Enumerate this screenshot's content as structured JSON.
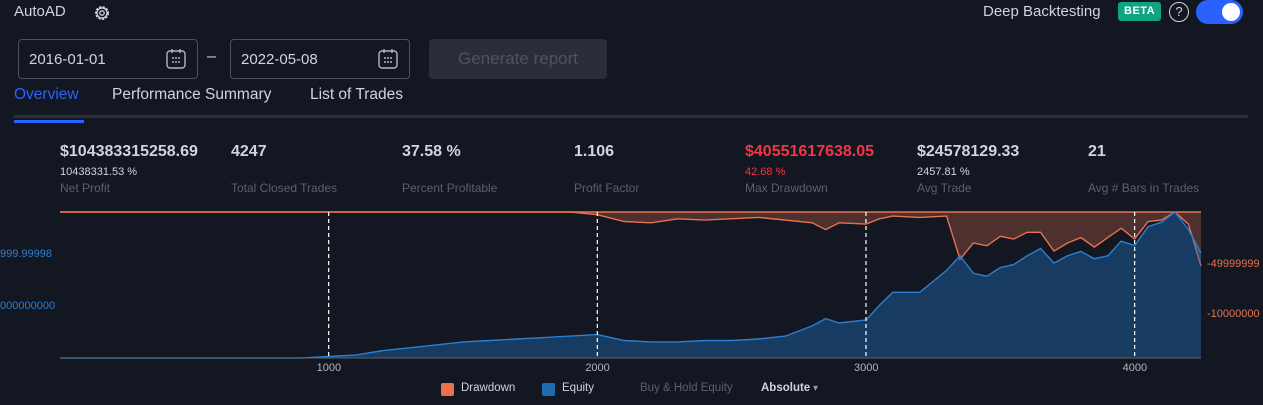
{
  "header": {
    "app_title": "AutoAD",
    "deep_backtesting_label": "Deep Backtesting",
    "beta_badge": "BETA",
    "help_glyph": "?",
    "deep_backtesting_enabled": true
  },
  "date_range": {
    "start": "2016-01-01",
    "separator": "–",
    "end": "2022-05-08",
    "generate_label": "Generate report"
  },
  "tabs": [
    {
      "label": "Overview",
      "active": true
    },
    {
      "label": "Performance Summary",
      "active": false
    },
    {
      "label": "List of Trades",
      "active": false
    }
  ],
  "stats": {
    "net_profit": {
      "value": "$104383315258.69",
      "sub": "10438331.53 %",
      "label": "Net Profit"
    },
    "total_closed_trades": {
      "value": "4247",
      "label": "Total Closed Trades"
    },
    "percent_profitable": {
      "value": "37.58 %",
      "label": "Percent Profitable"
    },
    "profit_factor": {
      "value": "1.106",
      "label": "Profit Factor"
    },
    "max_drawdown": {
      "value": "$40551617638.05",
      "sub": "42.68 %",
      "label": "Max Drawdown"
    },
    "avg_trade": {
      "value": "$24578129.33",
      "sub": "2457.81 %",
      "label": "Avg Trade"
    },
    "avg_bars": {
      "value": "21",
      "label": "Avg # Bars in Trades"
    }
  },
  "chart_axes": {
    "left_ticks": [
      "999.99998",
      "000000000"
    ],
    "right_ticks": [
      "-49999999",
      "-10000000"
    ],
    "x_ticks": [
      "1000",
      "2000",
      "3000",
      "4000"
    ]
  },
  "legend": {
    "drawdown": "Drawdown",
    "equity": "Equity",
    "buy_hold": "Buy & Hold Equity",
    "mode": "Absolute",
    "mode_caret": "▾"
  },
  "colors": {
    "accent": "#2962ff",
    "drawdown": "#e8724f",
    "equity": "#1f6bb0",
    "negative": "#f23645",
    "beta": "#0fa37f"
  },
  "chart_data": {
    "type": "area",
    "xlim": [
      0,
      4247
    ],
    "x_ticks": [
      1000,
      2000,
      3000,
      4000
    ],
    "series": [
      {
        "name": "Equity",
        "x": [
          0,
          900,
          1000,
          1100,
          1200,
          1300,
          1400,
          1500,
          1600,
          1700,
          1800,
          1900,
          2000,
          2100,
          2200,
          2300,
          2400,
          2500,
          2600,
          2700,
          2800,
          2850,
          2900,
          3000,
          3050,
          3100,
          3200,
          3300,
          3350,
          3400,
          3450,
          3500,
          3550,
          3600,
          3650,
          3700,
          3750,
          3800,
          3850,
          3900,
          3950,
          4000,
          4050,
          4100,
          4150,
          4200,
          4247
        ],
        "values": [
          0,
          0,
          0.01,
          0.02,
          0.05,
          0.07,
          0.09,
          0.11,
          0.12,
          0.13,
          0.14,
          0.15,
          0.16,
          0.12,
          0.11,
          0.11,
          0.12,
          0.12,
          0.13,
          0.15,
          0.22,
          0.27,
          0.24,
          0.26,
          0.36,
          0.45,
          0.45,
          0.6,
          0.7,
          0.58,
          0.56,
          0.62,
          0.64,
          0.7,
          0.75,
          0.65,
          0.7,
          0.73,
          0.68,
          0.7,
          0.8,
          0.77,
          0.9,
          0.93,
          1.0,
          0.88,
          0.72
        ]
      },
      {
        "name": "Drawdown",
        "x": [
          0,
          1900,
          2000,
          2100,
          2200,
          2300,
          2400,
          2600,
          2800,
          2850,
          2900,
          3000,
          3050,
          3100,
          3200,
          3300,
          3350,
          3400,
          3450,
          3500,
          3550,
          3600,
          3650,
          3700,
          3750,
          3800,
          3850,
          3900,
          3950,
          4000,
          4050,
          4100,
          4150,
          4200,
          4247
        ],
        "values": [
          0,
          0,
          0.02,
          0.07,
          0.08,
          0.05,
          0.06,
          0.04,
          0.08,
          0.13,
          0.08,
          0.09,
          0.05,
          0.03,
          0.04,
          0.03,
          0.35,
          0.23,
          0.25,
          0.18,
          0.2,
          0.15,
          0.15,
          0.29,
          0.23,
          0.19,
          0.26,
          0.19,
          0.12,
          0.2,
          0.07,
          0.06,
          0.0,
          0.09,
          0.4
        ]
      }
    ]
  }
}
